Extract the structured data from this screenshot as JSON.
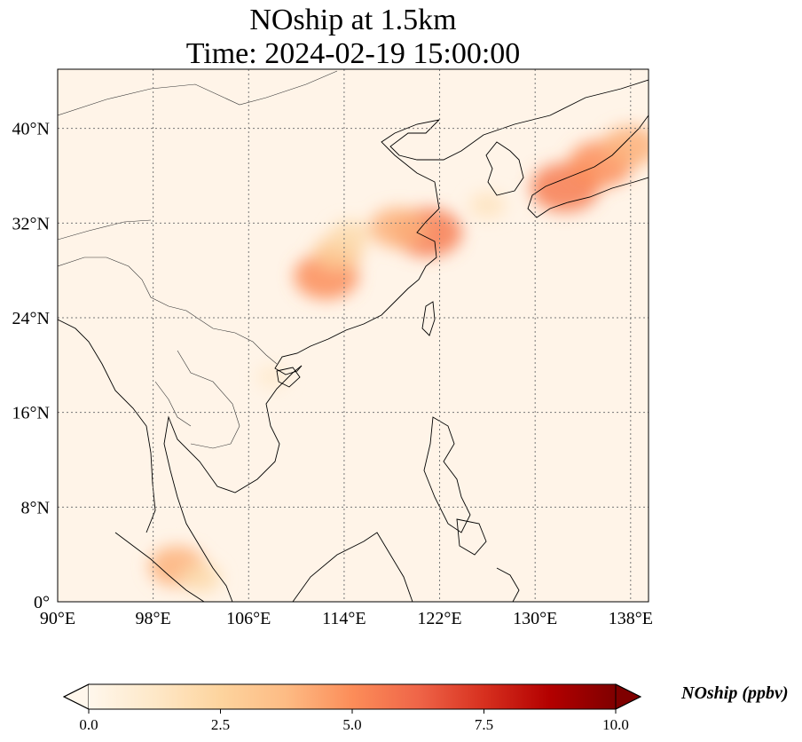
{
  "title": {
    "line1": "NOship at 1.5km",
    "line2": "Time: 2024-02-19 15:00:00"
  },
  "map": {
    "projection": "PlateCarree",
    "lon_range": [
      90,
      139.5
    ],
    "lat_range": [
      0,
      45
    ],
    "lon_ticks": [
      {
        "value": 90,
        "label": "90°E"
      },
      {
        "value": 98,
        "label": "98°E"
      },
      {
        "value": 106,
        "label": "106°E"
      },
      {
        "value": 114,
        "label": "114°E"
      },
      {
        "value": 122,
        "label": "122°E"
      },
      {
        "value": 130,
        "label": "130°E"
      },
      {
        "value": 138,
        "label": "138°E"
      }
    ],
    "lat_ticks": [
      {
        "value": 0,
        "label": "0°"
      },
      {
        "value": 8,
        "label": "8°N"
      },
      {
        "value": 16,
        "label": "16°N"
      },
      {
        "value": 24,
        "label": "24°N"
      },
      {
        "value": 32,
        "label": "32°N"
      },
      {
        "value": 40,
        "label": "40°N"
      }
    ],
    "gridlines": "dotted",
    "hotspots": [
      {
        "lon": 121.0,
        "lat": 31.2,
        "value": 5.5
      },
      {
        "lon": 118.5,
        "lat": 31.6,
        "value": 4.0
      },
      {
        "lon": 112.5,
        "lat": 27.5,
        "value": 5.0
      },
      {
        "lon": 113.5,
        "lat": 29.5,
        "value": 3.0
      },
      {
        "lon": 114.5,
        "lat": 31.0,
        "value": 2.0
      },
      {
        "lon": 132.5,
        "lat": 35.0,
        "value": 5.5
      },
      {
        "lon": 135.5,
        "lat": 37.0,
        "value": 5.0
      },
      {
        "lon": 138.0,
        "lat": 38.5,
        "value": 4.0
      },
      {
        "lon": 126.0,
        "lat": 33.5,
        "value": 1.5
      },
      {
        "lon": 100.0,
        "lat": 3.0,
        "value": 4.0
      },
      {
        "lon": 102.0,
        "lat": 2.0,
        "value": 2.0
      },
      {
        "lon": 108.0,
        "lat": 19.0,
        "value": 1.0
      }
    ]
  },
  "colorbar": {
    "label": "NOship (ppbv)",
    "cmap": "OrRd",
    "min": 0.0,
    "max": 10.0,
    "extend": "both",
    "ticks": [
      "0.0",
      "2.5",
      "5.0",
      "7.5",
      "10.0"
    ],
    "tick_values": [
      0.0,
      2.5,
      5.0,
      7.5,
      10.0
    ],
    "colors": [
      "#fff7ec",
      "#fee8c8",
      "#fdd49e",
      "#fdbb84",
      "#fc8d59",
      "#ef6548",
      "#d7301f",
      "#b30000",
      "#7f0000"
    ]
  }
}
